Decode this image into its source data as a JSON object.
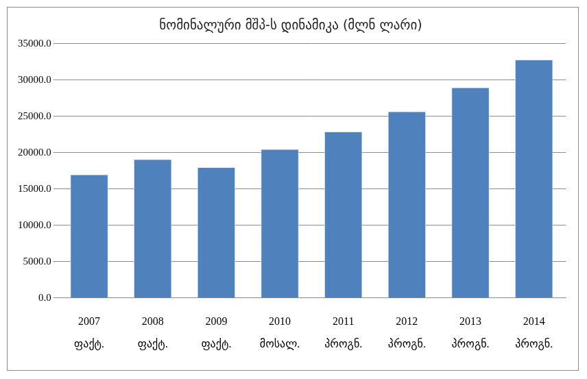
{
  "chart_data": {
    "type": "bar",
    "title": "ნომინალური მშპ-ს დინამიკა (მლნ ლარი)",
    "categories": [
      [
        "2007",
        "ფაქტ."
      ],
      [
        "2008",
        "ფაქტ."
      ],
      [
        "2009",
        "ფაქტ."
      ],
      [
        "2010",
        "მოსალ."
      ],
      [
        "2011",
        "პროგნ."
      ],
      [
        "2012",
        "პროგნ."
      ],
      [
        "2013",
        "პროგნ."
      ],
      [
        "2014",
        "პროგნ."
      ]
    ],
    "values": [
      17000,
      19100,
      18000,
      20500,
      22900,
      25700,
      29000,
      32800
    ],
    "color": "#4f81bd",
    "ylim": [
      0,
      35000
    ],
    "yticks": [
      {
        "value": 0,
        "label": "0.0"
      },
      {
        "value": 5000,
        "label": "5000.0"
      },
      {
        "value": 10000,
        "label": "10000.0"
      },
      {
        "value": 15000,
        "label": "15000.0"
      },
      {
        "value": 20000,
        "label": "20000.0"
      },
      {
        "value": 25000,
        "label": "25000.0"
      },
      {
        "value": 30000,
        "label": "30000.0"
      },
      {
        "value": 35000,
        "label": "35000.0"
      }
    ],
    "grid": true
  }
}
